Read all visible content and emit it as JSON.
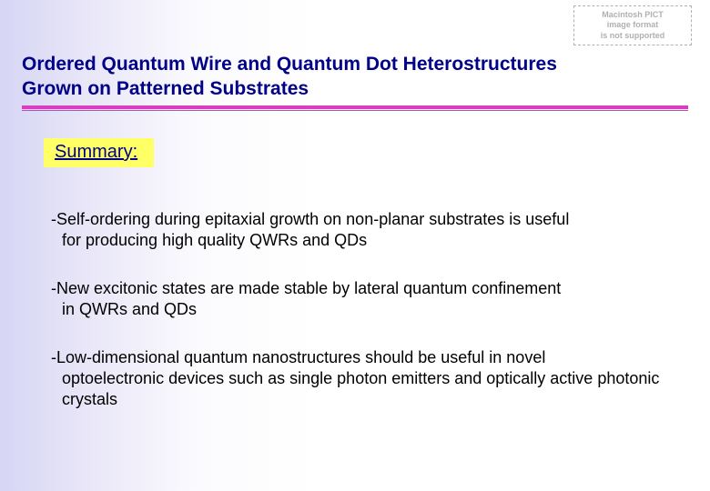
{
  "watermark": {
    "line1": "Macintosh PICT",
    "line2": "image format",
    "line3": "is not supported",
    "border_color": "#b0b0b0",
    "text_color": "#b0b0b0"
  },
  "title": {
    "line1": "Ordered Quantum Wire and Quantum Dot Heterostructures",
    "line2": "Grown on Patterned Substrates",
    "color": "#000088",
    "rule_color": "#d63fc0"
  },
  "summary_label": {
    "text": "Summary:",
    "bg_color": "#ffff66",
    "text_color": "#000088"
  },
  "bullets": [
    {
      "first": "-Self-ordering during epitaxial growth on non-planar substrates is useful",
      "rest": "for producing high quality QWRs and QDs"
    },
    {
      "first": "-New excitonic states are made stable by lateral quantum confinement",
      "rest": "in QWRs and QDs"
    },
    {
      "first": "-Low-dimensional quantum nanostructures should be useful in novel",
      "rest": "optoelectronic devices such as single photon emitters and optically active photonic crystals"
    }
  ],
  "background_gradient": {
    "from": "#d6d6f5",
    "to": "#ffffff"
  }
}
